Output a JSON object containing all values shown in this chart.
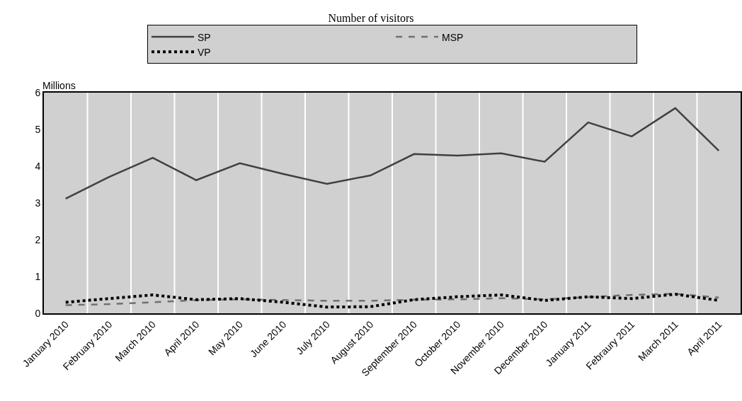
{
  "chart_data": {
    "type": "line",
    "title": "Number of visitors",
    "ylabel": "Millions",
    "categories": [
      "January 2010",
      "February 2010",
      "March 2010",
      "April 2010",
      "May 2010",
      "June 2010",
      "July 2010",
      "August 2010",
      "September 2010",
      "October 2010",
      "November 2010",
      "December 2010",
      "January 2011",
      "Febraury 2011",
      "March 2011",
      "April 2011"
    ],
    "series": [
      {
        "name": "SP",
        "color": "#404040",
        "line_style": "solid",
        "values": [
          3.12,
          3.71,
          4.23,
          3.62,
          4.08,
          3.79,
          3.52,
          3.75,
          4.33,
          4.29,
          4.35,
          4.12,
          5.19,
          4.81,
          5.58,
          4.42
        ]
      },
      {
        "name": "MSP",
        "color": "#707070",
        "line_style": "dashed",
        "values": [
          0.22,
          0.25,
          0.3,
          0.36,
          0.38,
          0.36,
          0.34,
          0.34,
          0.37,
          0.38,
          0.41,
          0.38,
          0.44,
          0.5,
          0.53,
          0.43
        ]
      },
      {
        "name": "VP",
        "color": "#000000",
        "line_style": "dotted",
        "values": [
          0.3,
          0.4,
          0.5,
          0.37,
          0.4,
          0.3,
          0.17,
          0.18,
          0.37,
          0.45,
          0.5,
          0.35,
          0.45,
          0.4,
          0.52,
          0.35
        ]
      }
    ],
    "ylim": [
      0,
      6
    ],
    "yticks": [
      0,
      1,
      2,
      3,
      4,
      5,
      6
    ],
    "grid": "x",
    "legend": "top",
    "marker": "none"
  }
}
